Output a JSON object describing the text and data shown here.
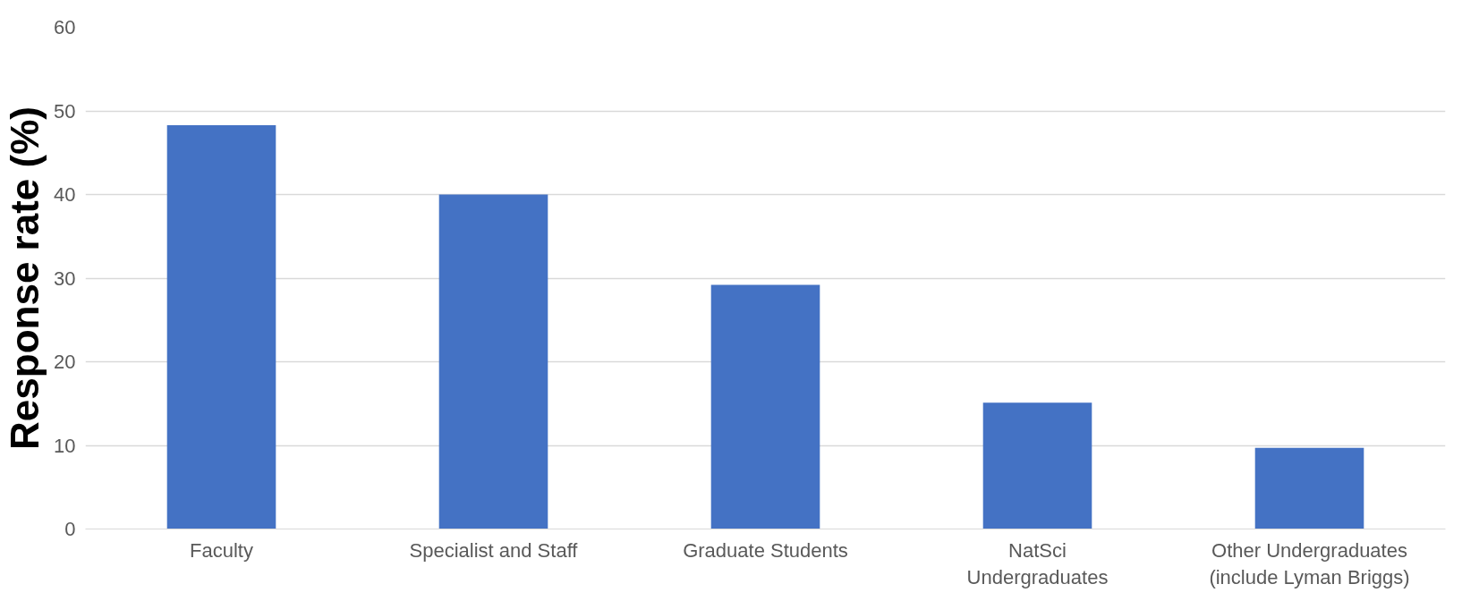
{
  "chart_data": {
    "type": "bar",
    "ylabel": "Response rate (%)",
    "categories": [
      "Faculty",
      "Specialist and Staff",
      "Graduate Students",
      "NatSci\nUndergraduates",
      "Other Undergraduates\n(include Lyman Briggs)"
    ],
    "values": [
      48.3,
      40.0,
      29.2,
      15.1,
      9.7
    ],
    "color": "#4472c4",
    "ylim": [
      0,
      60
    ],
    "yticks": [
      0,
      10,
      20,
      30,
      40,
      50,
      60
    ],
    "grid": "y"
  }
}
